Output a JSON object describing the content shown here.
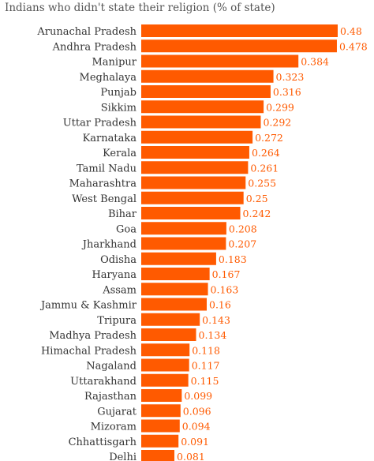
{
  "chart_data": {
    "type": "bar",
    "orientation": "horizontal",
    "title": "Indians who didn't state their religion (% of state)",
    "categories": [
      "Arunachal Pradesh",
      "Andhra Pradesh",
      "Manipur",
      "Meghalaya",
      "Punjab",
      "Sikkim",
      "Uttar Pradesh",
      "Karnataka",
      "Kerala",
      "Tamil Nadu",
      "Maharashtra",
      "West Bengal",
      "Bihar",
      "Goa",
      "Jharkhand",
      "Odisha",
      "Haryana",
      "Assam",
      "Jammu & Kashmir",
      "Tripura",
      "Madhya Pradesh",
      "Himachal Pradesh",
      "Nagaland",
      "Uttarakhand",
      "Rajasthan",
      "Gujarat",
      "Mizoram",
      "Chhattisgarh",
      "Delhi"
    ],
    "values": [
      0.48,
      0.478,
      0.384,
      0.323,
      0.316,
      0.299,
      0.292,
      0.272,
      0.264,
      0.261,
      0.255,
      0.25,
      0.242,
      0.208,
      0.207,
      0.183,
      0.167,
      0.163,
      0.16,
      0.143,
      0.134,
      0.118,
      0.117,
      0.115,
      0.099,
      0.096,
      0.094,
      0.091,
      0.081
    ],
    "value_labels": [
      "0.48",
      "0.478",
      "0.384",
      "0.323",
      "0.316",
      "0.299",
      "0.292",
      "0.272",
      "0.264",
      "0.261",
      "0.255",
      "0.25",
      "0.242",
      "0.208",
      "0.207",
      "0.183",
      "0.167",
      "0.163",
      "0.16",
      "0.143",
      "0.134",
      "0.118",
      "0.117",
      "0.115",
      "0.099",
      "0.096",
      "0.094",
      "0.091",
      "0.081"
    ],
    "xlim": [
      0,
      0.48
    ],
    "bar_color": "#ff5a00",
    "label_color": "#ff5a00",
    "text_color": "#333333",
    "grid": false,
    "legend": "none"
  }
}
